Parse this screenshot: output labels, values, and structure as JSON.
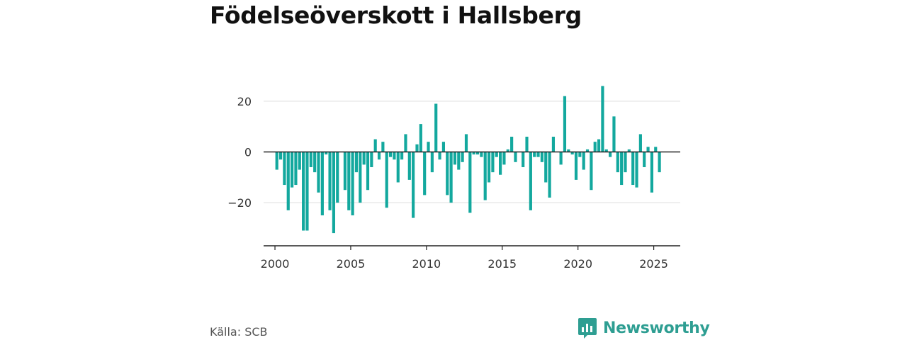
{
  "title": "Födelseöverskott i Hallsberg",
  "source": "Källa: SCB",
  "brand": {
    "name": "Newsworthy",
    "logo_icon": "bar-chart-speech-bubble-icon"
  },
  "colors": {
    "bar": "#13a89e",
    "brand": "#2e9e92",
    "axis": "#222222",
    "grid": "#dddddd"
  },
  "chart_data": {
    "type": "bar",
    "title": "Födelseöverskott i Hallsberg",
    "xlabel": "",
    "ylabel": "",
    "grid": true,
    "ylim": [
      -37,
      37
    ],
    "xlim": [
      1999.25,
      2026.75
    ],
    "y_ticks": [
      20,
      0,
      -20
    ],
    "y_tick_labels": [
      "20",
      "0",
      "−20"
    ],
    "x_ticks": [
      2000,
      2005,
      2010,
      2015,
      2020,
      2025
    ],
    "x_tick_labels": [
      "2000",
      "2005",
      "2010",
      "2015",
      "2020",
      "2025"
    ],
    "start_year": 2000,
    "period": "quarter",
    "values": [
      -7,
      -3,
      -13,
      -23,
      -14,
      -13,
      -7,
      -31,
      -31,
      -6,
      -8,
      -16,
      -25,
      -1,
      -23,
      -32,
      -20,
      0,
      -15,
      -23,
      -25,
      -8,
      -20,
      -5,
      -15,
      -6,
      5,
      -3,
      4,
      -22,
      -2,
      -3,
      -12,
      -3,
      7,
      -11,
      -26,
      3,
      11,
      -17,
      4,
      -8,
      19,
      -3,
      4,
      -17,
      -20,
      -5,
      -7,
      -4,
      7,
      -24,
      -1,
      -1,
      -2,
      -19,
      -12,
      -8,
      -2,
      -9,
      -5,
      1,
      6,
      -4,
      0,
      -6,
      6,
      -23,
      -2,
      -2,
      -4,
      -12,
      -18,
      6,
      0,
      -5,
      22,
      1,
      -1,
      -11,
      -2,
      -7,
      1,
      -15,
      4,
      5,
      26,
      1,
      -2,
      14,
      -8,
      -13,
      -8,
      1,
      -13,
      -14,
      7,
      -6,
      2,
      -16,
      2,
      -8
    ]
  }
}
